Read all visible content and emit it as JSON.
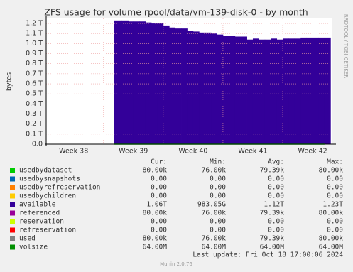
{
  "chart_data": {
    "type": "area",
    "title": "ZFS usage for volume rpool/data/vm-139-disk-0 - by month",
    "y_label": "bytes",
    "side_text": "RRDTOOL / TOBI OETIKER",
    "footer": "Last update: Fri Oct 18 17:00:06 2024",
    "version": "Munin 2.0.76",
    "xlim": [
      38.04,
      42.82
    ],
    "xticks": [
      {
        "value": 38.5,
        "label": "Week 38"
      },
      {
        "value": 39.5,
        "label": "Week 39"
      },
      {
        "value": 40.5,
        "label": "Week 40"
      },
      {
        "value": 41.5,
        "label": "Week 41"
      },
      {
        "value": 42.5,
        "label": "Week 42"
      }
    ],
    "xgrid": [
      39,
      40,
      41,
      42
    ],
    "ylim": [
      0,
      1.25
    ],
    "yticks": [
      {
        "value": 0,
        "label": "0.0"
      },
      {
        "value": 0.1,
        "label": "0.1 T"
      },
      {
        "value": 0.2,
        "label": "0.2 T"
      },
      {
        "value": 0.3,
        "label": "0.3 T"
      },
      {
        "value": 0.4,
        "label": "0.4 T"
      },
      {
        "value": 0.5,
        "label": "0.5 T"
      },
      {
        "value": 0.6,
        "label": "0.6 T"
      },
      {
        "value": 0.7,
        "label": "0.7 T"
      },
      {
        "value": 0.8,
        "label": "0.8 T"
      },
      {
        "value": 0.9,
        "label": "0.9 T"
      },
      {
        "value": 1.0,
        "label": "1.0 T"
      },
      {
        "value": 1.1,
        "label": "1.1 T"
      },
      {
        "value": 1.2,
        "label": "1.2 T"
      }
    ],
    "grid": true,
    "x": [
      39.17,
      39.3,
      39.42,
      39.5,
      39.6,
      39.7,
      39.8,
      39.9,
      40.0,
      40.1,
      40.2,
      40.3,
      40.4,
      40.5,
      40.6,
      40.7,
      40.8,
      40.9,
      41.0,
      41.1,
      41.2,
      41.3,
      41.4,
      41.5,
      41.6,
      41.7,
      41.8,
      41.9,
      42.0,
      42.1,
      42.2,
      42.3,
      42.4,
      42.5,
      42.6,
      42.7
    ],
    "stat_headers": [
      "Cur:",
      "Min:",
      "Avg:",
      "Max:"
    ],
    "series": [
      {
        "name": "usedbydataset",
        "color": "#00cc00",
        "stats": [
          "80.00k",
          "76.00k",
          "79.39k",
          "80.00k"
        ],
        "values": [
          8e-08,
          8e-08,
          8e-08,
          8e-08,
          8e-08,
          8e-08,
          8e-08,
          8e-08,
          8e-08,
          8e-08,
          8e-08,
          8e-08,
          8e-08,
          8e-08,
          8e-08,
          8e-08,
          8e-08,
          8e-08,
          8e-08,
          8e-08,
          8e-08,
          8e-08,
          8e-08,
          8e-08,
          8e-08,
          8e-08,
          8e-08,
          8e-08,
          8e-08,
          8e-08,
          8e-08,
          8e-08,
          8e-08,
          8e-08,
          8e-08,
          8e-08
        ]
      },
      {
        "name": "usedbysnapshots",
        "color": "#0066b3",
        "stats": [
          "0.00",
          "0.00",
          "0.00",
          "0.00"
        ]
      },
      {
        "name": "usedbyrefreservation",
        "color": "#ff8000",
        "stats": [
          "0.00",
          "0.00",
          "0.00",
          "0.00"
        ]
      },
      {
        "name": "usedbychildren",
        "color": "#ffcc00",
        "stats": [
          "0.00",
          "0.00",
          "0.00",
          "0.00"
        ]
      },
      {
        "name": "available",
        "color": "#330099",
        "stats": [
          "1.06T",
          "983.05G",
          "1.12T",
          "1.23T"
        ],
        "values": [
          1.23,
          1.23,
          1.22,
          1.22,
          1.22,
          1.21,
          1.2,
          1.2,
          1.18,
          1.16,
          1.15,
          1.15,
          1.13,
          1.12,
          1.11,
          1.11,
          1.1,
          1.09,
          1.08,
          1.08,
          1.07,
          1.07,
          1.04,
          1.05,
          1.04,
          1.04,
          1.05,
          1.04,
          1.05,
          1.05,
          1.05,
          1.06,
          1.06,
          1.06,
          1.06,
          1.06
        ]
      },
      {
        "name": "referenced",
        "color": "#990099",
        "stats": [
          "80.00k",
          "76.00k",
          "79.39k",
          "80.00k"
        ]
      },
      {
        "name": "reservation",
        "color": "#ccff00",
        "stats": [
          "0.00",
          "0.00",
          "0.00",
          "0.00"
        ]
      },
      {
        "name": "refreservation",
        "color": "#ff0000",
        "stats": [
          "0.00",
          "0.00",
          "0.00",
          "0.00"
        ]
      },
      {
        "name": "used",
        "color": "#808080",
        "stats": [
          "80.00k",
          "76.00k",
          "79.39k",
          "80.00k"
        ]
      },
      {
        "name": "volsize",
        "color": "#008f00",
        "stats": [
          "64.00M",
          "64.00M",
          "64.00M",
          "64.00M"
        ]
      }
    ]
  }
}
